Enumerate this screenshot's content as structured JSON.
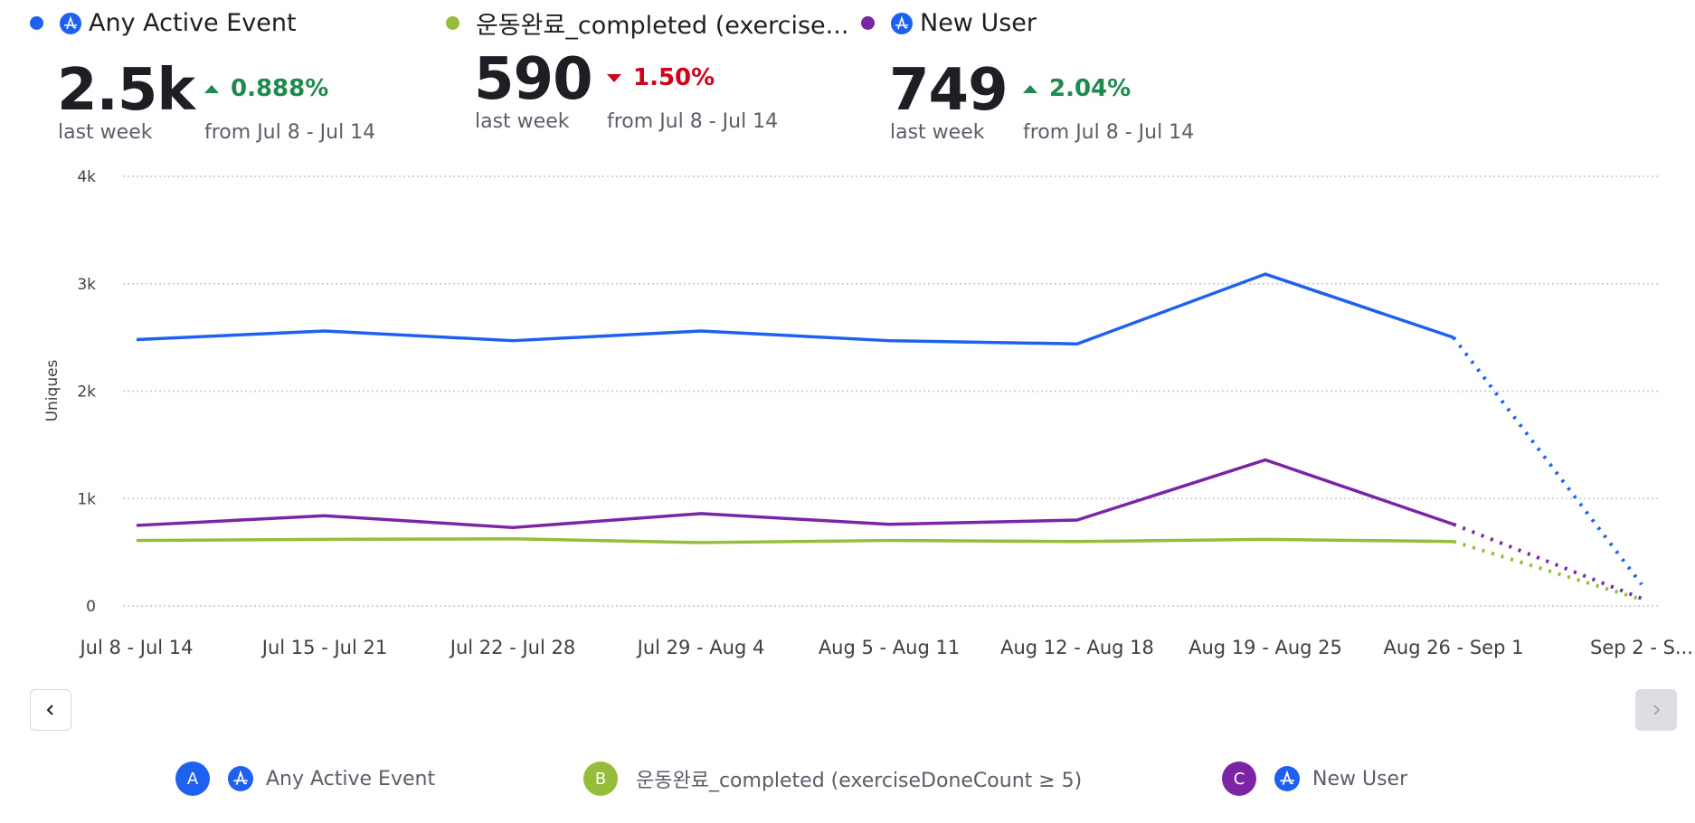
{
  "colors": {
    "series_a": "#1e61f0",
    "series_b": "#95bd3b",
    "series_c": "#7b25a6",
    "up": "#1f8a4f",
    "down": "#d0021b",
    "grid": "#c3c7cf"
  },
  "kpis": [
    {
      "title": "Any Active Event",
      "icon": "amplitude-event-icon",
      "value": "2.5k",
      "value_label": "last week",
      "delta": "0.888%",
      "direction": "up",
      "delta_label": "from Jul 8 - Jul 14"
    },
    {
      "title": "운동완료_completed (exercise...",
      "icon": "",
      "value": "590",
      "value_label": "last week",
      "delta": "1.50%",
      "direction": "down",
      "delta_label": "from Jul 8 - Jul 14"
    },
    {
      "title": "New User",
      "icon": "amplitude-event-icon",
      "value": "749",
      "value_label": "last week",
      "delta": "2.04%",
      "direction": "up",
      "delta_label": "from Jul 8 - Jul 14"
    }
  ],
  "navigation": {
    "prev_icon": "chevron-left-icon",
    "next_icon": "chevron-right-icon",
    "next_disabled": true
  },
  "legend": [
    {
      "letter": "A",
      "label": "Any Active Event",
      "has_icon": true
    },
    {
      "letter": "B",
      "label": "운동완료_completed (exerciseDoneCount ≥ 5)",
      "has_icon": false
    },
    {
      "letter": "C",
      "label": "New User",
      "has_icon": true
    }
  ],
  "chart_data": {
    "type": "line",
    "title": "",
    "xlabel": "",
    "ylabel": "Uniques",
    "ylim": [
      0,
      4000
    ],
    "yticks": [
      0,
      1000,
      2000,
      3000,
      4000
    ],
    "ytick_labels": [
      "0",
      "1k",
      "2k",
      "3k",
      "4k"
    ],
    "grid": true,
    "categories": [
      "Jul 8 - Jul 14",
      "Jul 15 - Jul 21",
      "Jul 22 - Jul 28",
      "Jul 29 - Aug 4",
      "Aug 5 - Aug 11",
      "Aug 12 - Aug 18",
      "Aug 19 - Aug 25",
      "Aug 26 - Sep 1",
      "Sep 2 - S..."
    ],
    "incomplete_from_index": 7,
    "series": [
      {
        "name": "Any Active Event",
        "color": "#1e61f0",
        "values": [
          2480,
          2560,
          2470,
          2560,
          2470,
          2440,
          3090,
          2500,
          200
        ]
      },
      {
        "name": "운동완료_completed (exerciseDoneCount ≥ 5)",
        "color": "#95bd3b",
        "values": [
          610,
          620,
          625,
          590,
          610,
          600,
          620,
          600,
          60
        ]
      },
      {
        "name": "New User",
        "color": "#7b25a6",
        "values": [
          750,
          840,
          730,
          860,
          760,
          800,
          1360,
          760,
          70
        ]
      }
    ]
  }
}
